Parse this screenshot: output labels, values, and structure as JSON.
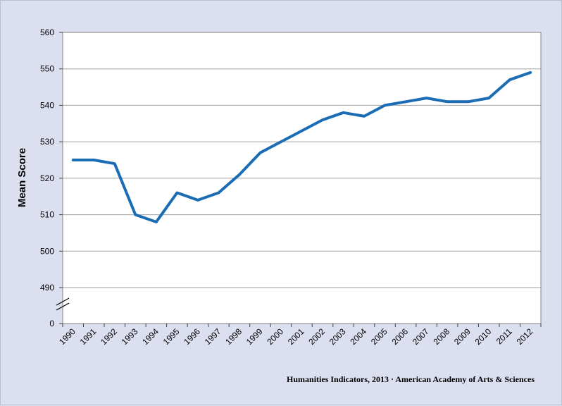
{
  "chart_data": {
    "type": "line",
    "title": "",
    "xlabel": "",
    "ylabel": "Mean Score",
    "x": [
      "1990",
      "1991",
      "1992",
      "1993",
      "1994",
      "1995",
      "1996",
      "1997",
      "1998",
      "1999",
      "2000",
      "2001",
      "2002",
      "2003",
      "2004",
      "2005",
      "2006",
      "2007",
      "2008",
      "2009",
      "2010",
      "2011",
      "2012"
    ],
    "series": [
      {
        "values": [
          525,
          525,
          524,
          510,
          508,
          516,
          514,
          516,
          521,
          527,
          530,
          533,
          536,
          538,
          537,
          540,
          541,
          542,
          541,
          541,
          542,
          547,
          549
        ],
        "color": "#1a6db5"
      }
    ],
    "yticks": [
      "490",
      "500",
      "510",
      "520",
      "530",
      "540",
      "550",
      "560"
    ],
    "y_zero_label": "0",
    "ylim": [
      485,
      560
    ],
    "axis_break": true,
    "grid": true,
    "legend": "none",
    "colors": {
      "plot_bg": "#ffffff",
      "outer_bg": "#dcdfef",
      "grid": "#a0a0a0",
      "line": "#1a6db5"
    }
  },
  "credit": "Humanities Indicators, 2013 · American Academy of Arts & Sciences"
}
